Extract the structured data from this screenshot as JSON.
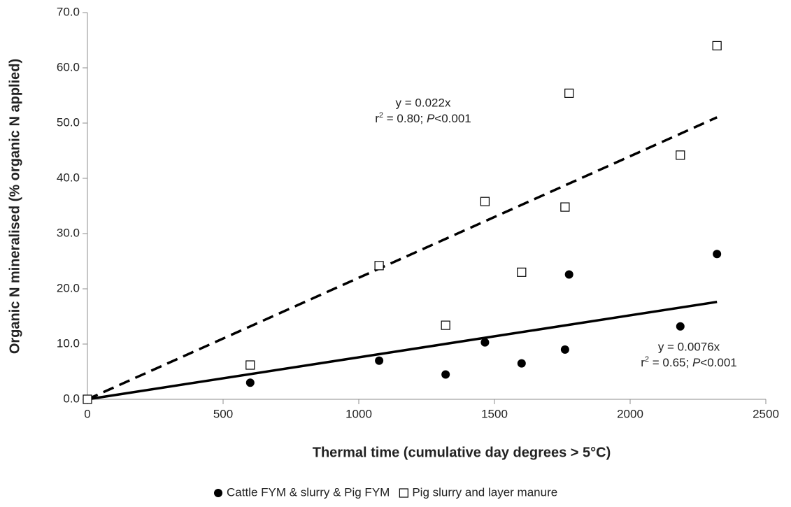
{
  "chart_data": {
    "type": "scatter",
    "x_label": "Thermal time (cumulative day degrees > 5°C)",
    "y_label": "Organic N mineralised (% organic N applied)",
    "xlim": [
      0,
      2500
    ],
    "xticks": [
      0,
      500,
      1000,
      1500,
      2000,
      2500
    ],
    "ylim": [
      0,
      70
    ],
    "yticks": [
      {
        "value": 0,
        "label": "0.0"
      },
      {
        "value": 10,
        "label": "10.0"
      },
      {
        "value": 20,
        "label": "20.0"
      },
      {
        "value": 30,
        "label": "30.0"
      },
      {
        "value": 40,
        "label": "40.0"
      },
      {
        "value": 50,
        "label": "50.0"
      },
      {
        "value": 60,
        "label": "60.0"
      },
      {
        "value": 70,
        "label": "70.0"
      }
    ],
    "series": [
      {
        "name": "Cattle FYM & slurry & Pig FYM",
        "marker": "circle",
        "color": "#000000",
        "x": [
          0,
          600,
          1075,
          1320,
          1465,
          1600,
          1760,
          1775,
          2185,
          2320
        ],
        "values": [
          0,
          3.0,
          7.0,
          4.5,
          10.3,
          6.5,
          9.0,
          22.6,
          13.2,
          26.3
        ],
        "trendline": {
          "slope": 0.0076,
          "x_end": 2320,
          "dashed": false
        },
        "annotation": {
          "equation": "y = 0.0076x",
          "stats": [
            "r",
            "2",
            " = 0.65; ",
            "P",
            "<0.001"
          ]
        }
      },
      {
        "name": "Pig slurry and layer manure",
        "marker": "square",
        "color": "#000000",
        "x": [
          0,
          600,
          1075,
          1320,
          1465,
          1600,
          1760,
          1775,
          2185,
          2320
        ],
        "values": [
          0,
          6.2,
          24.2,
          13.4,
          35.8,
          23.0,
          34.8,
          55.4,
          44.2,
          64.0
        ],
        "trendline": {
          "slope": 0.022,
          "x_end": 2320,
          "dashed": true
        },
        "annotation": {
          "equation": "y = 0.022x",
          "stats": [
            "r",
            "2",
            " = 0.80; ",
            "P",
            "<0.001"
          ]
        }
      }
    ]
  }
}
